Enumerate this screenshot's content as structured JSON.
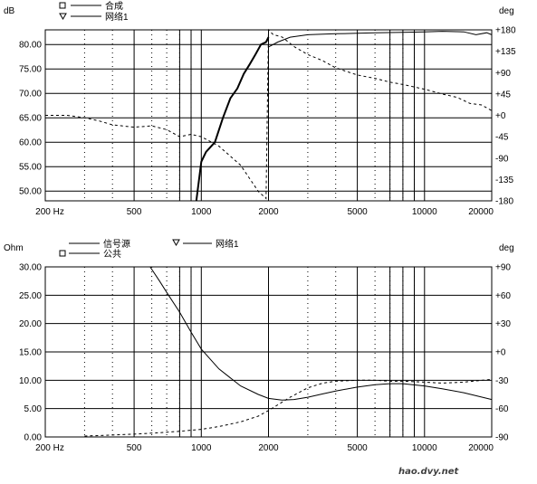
{
  "chart_data": [
    {
      "type": "line",
      "y_unit": "dB",
      "y2_unit": "deg",
      "x_scale": "log",
      "xlim": [
        200,
        20000
      ],
      "ylim": [
        48,
        83
      ],
      "y2lim": [
        -180,
        180
      ],
      "x_ticks": [
        200,
        500,
        1000,
        2000,
        5000,
        10000,
        20000
      ],
      "x_tick_labels": [
        "200 Hz",
        "500",
        "1000",
        "2000",
        "5000",
        "10000",
        "20000"
      ],
      "y_ticks": [
        50,
        55,
        60,
        65,
        70,
        75,
        80
      ],
      "y_tick_labels": [
        "50.00",
        "55.00",
        "60.00",
        "65.00",
        "70.00",
        "75.00",
        "80.00"
      ],
      "y2_ticks": [
        180,
        135,
        90,
        45,
        0,
        -45,
        -90,
        -135,
        -180
      ],
      "y2_tick_labels": [
        "+180",
        "+135",
        "+90",
        "+45",
        "+0",
        "-45",
        "-90",
        "-135",
        "-180"
      ],
      "grid": true,
      "legend": [
        "合成",
        "网络1"
      ],
      "series": [
        {
          "name": "合成",
          "axis": "left",
          "style": "solid-bold",
          "x": [
            950,
            1000,
            1050,
            1150,
            1250,
            1350,
            1450,
            1550,
            1650,
            1750,
            1850,
            1950,
            2000
          ],
          "y": [
            48,
            56,
            58,
            60,
            65,
            69,
            71,
            74,
            76,
            78,
            80,
            80.5,
            81.5
          ]
        },
        {
          "name": "",
          "axis": "left",
          "style": "solid",
          "x": [
            2000,
            2200,
            2500,
            3000,
            4000,
            5000,
            6000,
            8000,
            10000,
            12000,
            15000,
            17000,
            19000,
            20000
          ],
          "y": [
            79.5,
            80.5,
            81.5,
            82,
            82.2,
            82.3,
            82.4,
            82.5,
            82.6,
            82.7,
            82.6,
            82,
            82.4,
            82
          ]
        },
        {
          "name": "网络1",
          "axis": "right",
          "style": "dashed",
          "x": [
            200,
            250,
            300,
            350,
            400,
            500,
            600,
            700,
            800,
            900,
            1000,
            1200,
            1500,
            1800,
            1950,
            2000,
            2100,
            2300,
            2600,
            3000,
            3500,
            4000,
            5000,
            6000,
            7000,
            8000,
            10000,
            12000,
            14000,
            16000,
            18000,
            20000
          ],
          "y": [
            0,
            0,
            -5,
            -12,
            -20,
            -25,
            -22,
            -30,
            -45,
            -40,
            -45,
            -65,
            -105,
            -160,
            -175,
            180,
            170,
            165,
            145,
            128,
            115,
            100,
            85,
            78,
            70,
            65,
            55,
            45,
            38,
            25,
            22,
            10
          ]
        }
      ]
    },
    {
      "type": "line",
      "y_unit": "Ohm",
      "y2_unit": "deg",
      "x_scale": "log",
      "xlim": [
        200,
        20000
      ],
      "ylim": [
        0,
        30
      ],
      "y2lim": [
        -90,
        90
      ],
      "x_ticks": [
        200,
        500,
        1000,
        2000,
        5000,
        10000,
        20000
      ],
      "x_tick_labels": [
        "200 Hz",
        "500",
        "1000",
        "2000",
        "5000",
        "10000",
        "20000"
      ],
      "y_ticks": [
        0,
        5,
        10,
        15,
        20,
        25,
        30
      ],
      "y_tick_labels": [
        "0.00",
        "5.00",
        "10.00",
        "15.00",
        "20.00",
        "25.00",
        "30.00"
      ],
      "y2_ticks": [
        90,
        60,
        30,
        0,
        -30,
        -60,
        -90
      ],
      "y2_tick_labels": [
        "+90",
        "+60",
        "+30",
        "+0",
        "-30",
        "-60",
        "-90"
      ],
      "grid": true,
      "legend": [
        "信号源",
        "公共",
        "网络1"
      ],
      "series": [
        {
          "name": "信号源",
          "axis": "left",
          "style": "solid",
          "x": [
            590,
            650,
            700,
            800,
            900,
            1000,
            1200,
            1500,
            1800,
            2000,
            2300,
            2600,
            3000,
            3500,
            4000,
            5000,
            6000,
            7000,
            8000,
            10000,
            12000,
            15000,
            20000
          ],
          "y": [
            30,
            27.5,
            25.5,
            22,
            18.5,
            15.5,
            12,
            9,
            7.5,
            6.8,
            6.5,
            6.6,
            7,
            7.6,
            8.1,
            8.8,
            9.2,
            9.4,
            9.4,
            9.0,
            8.5,
            7.8,
            6.6
          ]
        },
        {
          "name": "网络1",
          "axis": "right",
          "style": "dashed",
          "x": [
            300,
            400,
            500,
            600,
            700,
            800,
            1000,
            1200,
            1500,
            1800,
            2000,
            2500,
            3000,
            3500,
            4000,
            5000,
            6000,
            7000,
            8000,
            10000,
            12000,
            15000,
            20000
          ],
          "y": [
            -89,
            -88,
            -87,
            -86,
            -85,
            -84,
            -82,
            -79,
            -74,
            -68,
            -62,
            -48,
            -38,
            -33,
            -31,
            -30,
            -30,
            -31,
            -31,
            -32,
            -33,
            -32,
            -29
          ]
        }
      ]
    }
  ],
  "watermark": "hao.dvy.net"
}
